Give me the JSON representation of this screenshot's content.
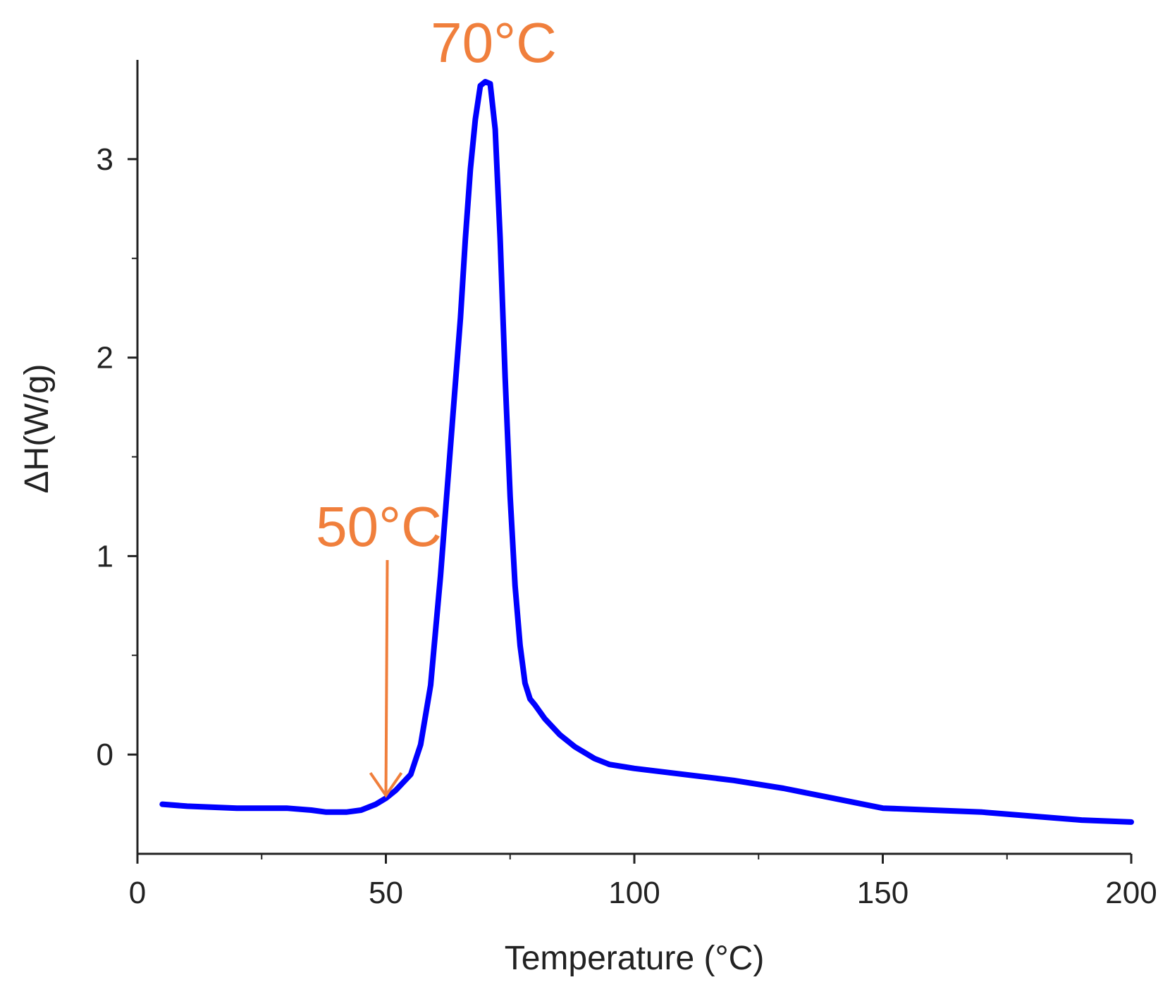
{
  "chart_data": {
    "type": "line",
    "title": "",
    "xlabel": "Temperature (°C)",
    "ylabel": "ΔH(W/g)",
    "xlim": [
      0,
      200
    ],
    "ylim": [
      -0.5,
      3.5
    ],
    "grid": false,
    "legend": "none",
    "x_ticks": [
      {
        "value": 0,
        "label": "0"
      },
      {
        "value": 50,
        "label": "50"
      },
      {
        "value": 100,
        "label": "100"
      },
      {
        "value": 150,
        "label": "150"
      },
      {
        "value": 200,
        "label": "200"
      }
    ],
    "y_ticks": [
      {
        "value": 0,
        "label": "0"
      },
      {
        "value": 1,
        "label": "1"
      },
      {
        "value": 2,
        "label": "2"
      },
      {
        "value": 3,
        "label": "3"
      }
    ],
    "series": [
      {
        "color": "#0000ff",
        "x": [
          5,
          10,
          20,
          30,
          35,
          38,
          42,
          45,
          48,
          50,
          52,
          55,
          57,
          59,
          61,
          63,
          65,
          66,
          67,
          68,
          69,
          70,
          71,
          72,
          73,
          74,
          75,
          76,
          77,
          78,
          79,
          80,
          82,
          85,
          88,
          92,
          95,
          100,
          110,
          120,
          130,
          140,
          150,
          160,
          170,
          180,
          190,
          200
        ],
        "y": [
          -0.25,
          -0.26,
          -0.27,
          -0.27,
          -0.28,
          -0.29,
          -0.29,
          -0.28,
          -0.25,
          -0.22,
          -0.18,
          -0.1,
          0.05,
          0.35,
          0.9,
          1.55,
          2.2,
          2.6,
          2.95,
          3.2,
          3.37,
          3.39,
          3.38,
          3.15,
          2.6,
          1.9,
          1.3,
          0.85,
          0.55,
          0.36,
          0.28,
          0.25,
          0.18,
          0.1,
          0.04,
          -0.02,
          -0.05,
          -0.07,
          -0.1,
          -0.13,
          -0.17,
          -0.22,
          -0.27,
          -0.28,
          -0.29,
          -0.31,
          -0.33,
          -0.34
        ]
      }
    ],
    "annotations": [
      {
        "text": "70°C",
        "x": 70,
        "y": 3.39,
        "color": "#f07f3c"
      },
      {
        "text": "50°C",
        "x": 50,
        "y": -0.22,
        "color": "#f07f3c",
        "arrow": true
      }
    ]
  }
}
